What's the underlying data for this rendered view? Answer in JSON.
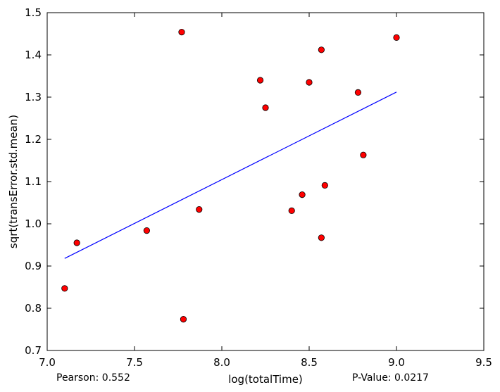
{
  "chart_data": {
    "type": "scatter",
    "title": "",
    "xlabel": "log(totalTime)",
    "ylabel": "sqrt(transError.std.mean)",
    "xlim": [
      7.0,
      9.5
    ],
    "ylim": [
      0.7,
      1.5
    ],
    "x_ticks": [
      "7.0",
      "7.5",
      "8.0",
      "8.5",
      "9.0",
      "9.5"
    ],
    "y_ticks": [
      "0.7",
      "0.8",
      "0.9",
      "1.0",
      "1.1",
      "1.2",
      "1.3",
      "1.4",
      "1.5"
    ],
    "grid": false,
    "legend": false,
    "series": [
      {
        "marker_color": "#ff0000",
        "points": [
          {
            "x": 7.1,
            "y": 0.847
          },
          {
            "x": 7.17,
            "y": 0.955
          },
          {
            "x": 7.57,
            "y": 0.984
          },
          {
            "x": 7.77,
            "y": 1.454
          },
          {
            "x": 7.78,
            "y": 0.774
          },
          {
            "x": 7.87,
            "y": 1.034
          },
          {
            "x": 8.22,
            "y": 1.34
          },
          {
            "x": 8.25,
            "y": 1.275
          },
          {
            "x": 8.4,
            "y": 1.031
          },
          {
            "x": 8.46,
            "y": 1.069
          },
          {
            "x": 8.5,
            "y": 1.335
          },
          {
            "x": 8.57,
            "y": 1.412
          },
          {
            "x": 8.57,
            "y": 0.967
          },
          {
            "x": 8.59,
            "y": 1.091
          },
          {
            "x": 8.78,
            "y": 1.311
          },
          {
            "x": 8.81,
            "y": 1.163
          },
          {
            "x": 9.0,
            "y": 1.441
          }
        ]
      }
    ],
    "fit_line": {
      "color": "#0000ff",
      "points": [
        {
          "x": 7.1,
          "y": 0.918
        },
        {
          "x": 9.0,
          "y": 1.312
        }
      ]
    }
  },
  "stats": {
    "pearson": "Pearson: 0.552",
    "p_value": "P-Value: 0.0217"
  }
}
